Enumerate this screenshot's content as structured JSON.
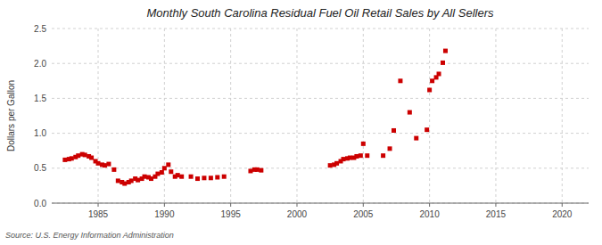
{
  "chart_data": {
    "type": "scatter",
    "title": "Monthly South Carolina Residual Fuel Oil Retail Sales by All Sellers",
    "ylabel": "Dollars per Gallon",
    "annotations": [
      "Source: U.S. Energy Information Administration"
    ],
    "color": "#cc0000",
    "marker": "square",
    "grid": true,
    "xlim": [
      1981.5,
      2022
    ],
    "ylim": [
      0.0,
      2.5
    ],
    "xticks": [
      1985,
      1990,
      1995,
      2000,
      2005,
      2010,
      2015,
      2020
    ],
    "yticks": [
      {
        "value": 0.0,
        "label": "0.0"
      },
      0.5,
      {
        "value": 1.0,
        "label": "1.0"
      },
      1.5,
      {
        "value": 2.0,
        "label": "2.0"
      },
      2.5
    ],
    "x": [
      1982.5,
      1982.8,
      1983.0,
      1983.3,
      1983.5,
      1983.8,
      1984.0,
      1984.3,
      1984.5,
      1984.8,
      1985.0,
      1985.3,
      1985.5,
      1985.8,
      1986.2,
      1986.5,
      1986.8,
      1987.0,
      1987.3,
      1987.5,
      1987.8,
      1988.0,
      1988.3,
      1988.5,
      1988.8,
      1989.0,
      1989.3,
      1989.5,
      1989.8,
      1990.0,
      1990.3,
      1990.5,
      1990.8,
      1991.0,
      1991.3,
      1992.0,
      1992.5,
      1993.0,
      1993.5,
      1994.0,
      1994.5,
      1996.5,
      1996.8,
      1997.0,
      1997.3,
      2002.5,
      2002.8,
      2003.0,
      2003.3,
      2003.5,
      2003.8,
      2004.0,
      2004.3,
      2004.5,
      2004.8,
      2005.0,
      2005.3,
      2006.5,
      2007.0,
      2007.3,
      2007.8,
      2008.5,
      2009.0,
      2009.8,
      2010.0,
      2010.2,
      2010.5,
      2010.7,
      2011.0,
      2011.2
    ],
    "values": [
      0.62,
      0.63,
      0.64,
      0.66,
      0.68,
      0.7,
      0.69,
      0.67,
      0.65,
      0.6,
      0.57,
      0.55,
      0.54,
      0.56,
      0.48,
      0.32,
      0.3,
      0.28,
      0.3,
      0.32,
      0.35,
      0.33,
      0.35,
      0.38,
      0.37,
      0.35,
      0.38,
      0.42,
      0.44,
      0.5,
      0.55,
      0.45,
      0.38,
      0.4,
      0.38,
      0.38,
      0.35,
      0.36,
      0.36,
      0.37,
      0.38,
      0.46,
      0.48,
      0.48,
      0.47,
      0.54,
      0.55,
      0.57,
      0.6,
      0.63,
      0.64,
      0.65,
      0.65,
      0.67,
      0.68,
      0.85,
      0.68,
      0.68,
      0.78,
      1.04,
      1.75,
      1.3,
      0.93,
      1.05,
      1.62,
      1.75,
      1.8,
      1.85,
      2.01,
      2.18
    ]
  }
}
